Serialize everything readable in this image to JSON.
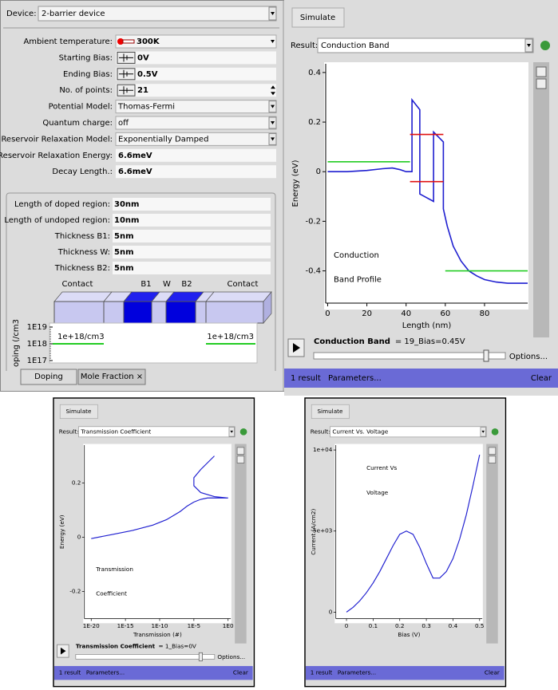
{
  "device_panel": {
    "device_label": "Device:",
    "device": "2-barrier device",
    "fields": [
      {
        "label": "Ambient temperature:",
        "value": "300K"
      },
      {
        "label": "Starting Bias:",
        "value": "0V"
      },
      {
        "label": "Ending Bias:",
        "value": "0.5V"
      },
      {
        "label": "No. of points:",
        "value": "21"
      },
      {
        "label": "Potential Model:",
        "value": "Thomas-Fermi"
      },
      {
        "label": "Quantum charge:",
        "value": "off"
      },
      {
        "label": "Reservoir Relaxation Model:",
        "value": "Exponentially Damped"
      },
      {
        "label": "Reservoir Relaxation Energy:",
        "value": "6.6meV"
      },
      {
        "label": "Decay Length.:",
        "value": "6.6meV"
      }
    ],
    "structure_fields": [
      {
        "label": "Length of doped region:",
        "value": "30nm"
      },
      {
        "label": "Length of undoped region:",
        "value": "10nm"
      },
      {
        "label": "Thickness B1:",
        "value": "5nm"
      },
      {
        "label": "Thickness W:",
        "value": "5nm"
      },
      {
        "label": "Thickness B2:",
        "value": "5nm"
      }
    ],
    "structure_labels": [
      "Contact",
      "B1",
      "W",
      "B2",
      "Contact"
    ],
    "doping": {
      "axis_label": "oping (/cm3",
      "ticks": [
        "1E19",
        "1E18",
        "1E17"
      ],
      "labels": [
        "1e+18/cm3",
        "1e+18/cm3"
      ]
    },
    "tabs": [
      "Doping",
      "Mole Fraction ×"
    ]
  },
  "windows": [
    {
      "simulate": "Simulate",
      "result_label": "Result:",
      "result": "Conduction Band",
      "caption": [
        "Conduction",
        "Band Profile"
      ],
      "status_name": "Conduction Band",
      "status_value": "= 19_Bias=0.45V",
      "options": "Options...",
      "footer": {
        "count": "1 result",
        "parameters": "Parameters...",
        "clear": "Clear"
      },
      "chart_data": {
        "type": "line",
        "xlabel": "Length (nm)",
        "ylabel": "Energy (eV)",
        "xlim": [
          -1,
          102
        ],
        "ylim": [
          -0.53,
          0.435
        ],
        "xticks": [
          0,
          20,
          40,
          60,
          80
        ],
        "yticks": [
          0.4,
          0.2,
          0,
          -0.2,
          -0.4
        ],
        "series": [
          {
            "color": "#1f1fd0",
            "x": [
              0,
              10,
              20,
              28,
              33,
              37,
              40,
              43,
              43,
              47,
              47,
              54,
              54,
              59,
              59,
              61,
              64,
              68,
              72,
              76,
              80,
              86,
              92,
              102
            ],
            "values": [
              0,
              0,
              0.005,
              0.012,
              0.015,
              0.008,
              0,
              0,
              0.29,
              0.25,
              -0.09,
              -0.12,
              0.16,
              0.12,
              -0.15,
              -0.22,
              -0.3,
              -0.36,
              -0.4,
              -0.42,
              -0.435,
              -0.445,
              -0.45,
              -0.45
            ]
          },
          {
            "color": "#22cc22",
            "x": [
              0,
              42
            ],
            "values": [
              0.04,
              0.04
            ]
          },
          {
            "color": "#22cc22",
            "x": [
              60,
              102
            ],
            "values": [
              -0.4,
              -0.4
            ]
          },
          {
            "color": "#e01010",
            "x": [
              42,
              59
            ],
            "values": [
              0.15,
              0.15
            ]
          },
          {
            "color": "#e01010",
            "x": [
              42,
              59
            ],
            "values": [
              -0.04,
              -0.04
            ]
          }
        ]
      }
    },
    {
      "simulate": "Simulate",
      "result_label": "Result:",
      "result": "Transmission Coefficient",
      "caption": [
        "Transmission",
        "Coefficient"
      ],
      "status_name": "Transmission Coefficient",
      "status_value": "= 1_Bias=0V",
      "options": "Options...",
      "footer": {
        "count": "1 result",
        "parameters": "Parameters...",
        "clear": "Clear"
      },
      "chart_data": {
        "type": "line",
        "xlabel": "Transmission (#)",
        "ylabel": "Energy (eV)",
        "xscale": "log",
        "xlim": [
          1e-21,
          2.5
        ],
        "ylim": [
          -0.3,
          0.34
        ],
        "xticks": [
          {
            "value": 1e-20,
            "label": "1E-20"
          },
          {
            "value": 1e-15,
            "label": "1E-15"
          },
          {
            "value": 1e-10,
            "label": "1E-10"
          },
          {
            "value": 1e-05,
            "label": "1E-5"
          },
          {
            "value": 1,
            "label": "1E0"
          }
        ],
        "yticks": [
          0.2,
          0,
          -0.2
        ],
        "series": [
          {
            "color": "#1f1fd0",
            "x": [
              1e-20,
              1e-17,
              1e-14,
              1e-11,
              1e-09,
              1e-07,
              1e-06,
              1e-05,
              0.0001,
              0.001,
              0.01,
              1,
              0.01,
              0.0001,
              1e-05,
              1e-05,
              0.0001,
              0.001,
              0.01
            ],
            "values": [
              -0.005,
              0.01,
              0.025,
              0.045,
              0.065,
              0.095,
              0.115,
              0.13,
              0.14,
              0.145,
              0.145,
              0.145,
              0.15,
              0.165,
              0.19,
              0.22,
              0.25,
              0.275,
              0.3
            ]
          }
        ]
      }
    },
    {
      "simulate": "Simulate",
      "result_label": "Result:",
      "result": "Current Vs. Voltage",
      "caption": [
        "Current Vs",
        "Voltage"
      ],
      "footer": {
        "count": "1 result",
        "parameters": "Parameters...",
        "clear": "Clear"
      },
      "chart_data": {
        "type": "line",
        "xlabel": "Bias (V)",
        "ylabel": "Current (A/cm2)",
        "xlim": [
          -0.04,
          0.51
        ],
        "ylim": [
          -400,
          10300
        ],
        "xticks": [
          0,
          0.1,
          0.2,
          0.3,
          0.4,
          0.5
        ],
        "yticks": [
          {
            "value": 10000,
            "label": "1e+04"
          },
          {
            "value": 5000,
            "label": "5e+03"
          },
          0
        ],
        "series": [
          {
            "color": "#1f1fd0",
            "x": [
              0,
              0.025,
              0.05,
              0.075,
              0.1,
              0.125,
              0.15,
              0.175,
              0.2,
              0.225,
              0.25,
              0.275,
              0.3,
              0.325,
              0.35,
              0.375,
              0.4,
              0.425,
              0.45,
              0.475,
              0.5
            ],
            "values": [
              0,
              300,
              700,
              1200,
              1800,
              2500,
              3300,
              4100,
              4800,
              5000,
              4800,
              4000,
              3000,
              2100,
              2100,
              2500,
              3300,
              4500,
              6000,
              7800,
              9700
            ]
          }
        ]
      }
    }
  ]
}
